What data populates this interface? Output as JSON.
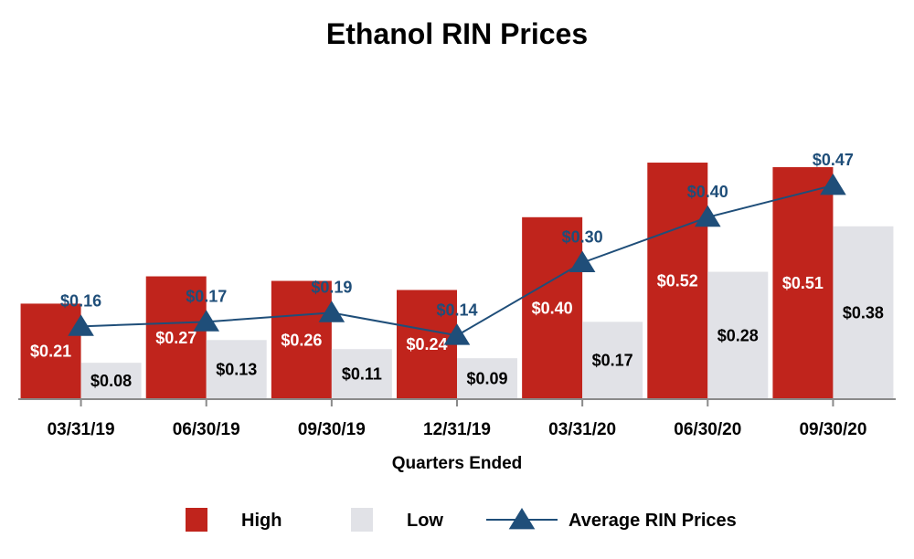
{
  "chart_data": {
    "type": "bar",
    "title": "Ethanol RIN Prices",
    "xlabel": "Quarters Ended",
    "ylabel": "",
    "ylim": [
      0,
      0.6
    ],
    "categories": [
      "03/31/19",
      "06/30/19",
      "09/30/19",
      "12/31/19",
      "03/31/20",
      "06/30/20",
      "09/30/20"
    ],
    "series": [
      {
        "name": "High",
        "kind": "bar",
        "color": "#c0241c",
        "values": [
          0.21,
          0.27,
          0.26,
          0.24,
          0.4,
          0.52,
          0.51
        ],
        "labels": [
          "$0.21",
          "$0.27",
          "$0.26",
          "$0.24",
          "$0.40",
          "$0.52",
          "$0.51"
        ]
      },
      {
        "name": "Low",
        "kind": "bar",
        "color": "#e1e2e7",
        "values": [
          0.08,
          0.13,
          0.11,
          0.09,
          0.17,
          0.28,
          0.38
        ],
        "labels": [
          "$0.08",
          "$0.13",
          "$0.11",
          "$0.09",
          "$0.17",
          "$0.28",
          "$0.38"
        ]
      },
      {
        "name": "Average RIN Prices",
        "kind": "line",
        "color": "#1f4e79",
        "values": [
          0.16,
          0.17,
          0.19,
          0.14,
          0.3,
          0.4,
          0.47
        ],
        "labels": [
          "$0.16",
          "$0.17",
          "$0.19",
          "$0.14",
          "$0.30",
          "$0.40",
          "$0.47"
        ]
      }
    ],
    "legend": {
      "position": "bottom"
    }
  }
}
